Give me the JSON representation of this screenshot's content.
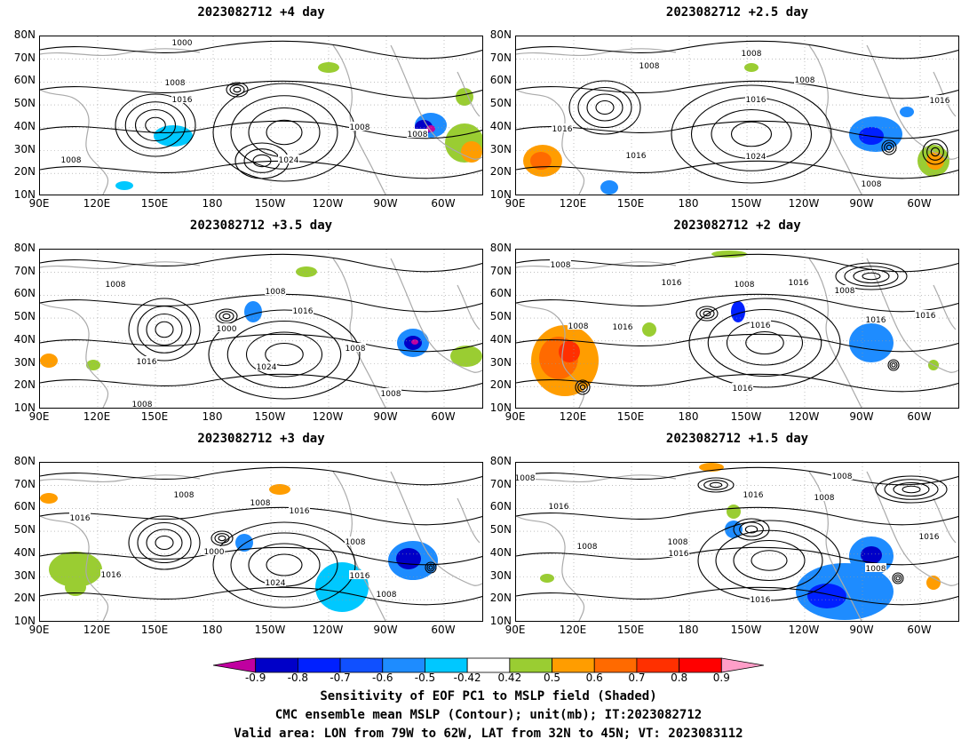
{
  "panels": [
    {
      "title": "2023082712  +4 day"
    },
    {
      "title": "2023082712  +2.5 day"
    },
    {
      "title": "2023082712  +3.5 day"
    },
    {
      "title": "2023082712  +2 day"
    },
    {
      "title": "2023082712  +3 day"
    },
    {
      "title": "2023082712  +1.5 day"
    }
  ],
  "lat_ticks": [
    "80N",
    "70N",
    "60N",
    "50N",
    "40N",
    "30N",
    "20N",
    "10N"
  ],
  "lon_ticks": [
    "90E",
    "120E",
    "150E",
    "180",
    "150W",
    "120W",
    "90W",
    "60W"
  ],
  "contour_labels": [
    "1000",
    "1008",
    "1016",
    "1024"
  ],
  "colorbar": {
    "labels": [
      "-0.9",
      "-0.8",
      "-0.7",
      "-0.6",
      "-0.5",
      "-0.42",
      "0.42",
      "0.5",
      "0.6",
      "0.7",
      "0.8",
      "0.9"
    ],
    "colors": [
      "#c000a0",
      "#0000c8",
      "#0020ff",
      "#1050ff",
      "#1e8cff",
      "#00c8ff",
      "#ffffff",
      "#9acd32",
      "#ff9d00",
      "#ff6a00",
      "#ff3000",
      "#ff0000",
      "#ff9ec8"
    ]
  },
  "caption": {
    "line1": "Sensitivity of EOF PC1 to MSLP field (Shaded)",
    "line2": "CMC ensemble mean MSLP (Contour); unit(mb); IT:2023082712",
    "line3": "Valid area: LON from 79W to 62W, LAT from 32N to 45N; VT: 2023083112"
  }
}
